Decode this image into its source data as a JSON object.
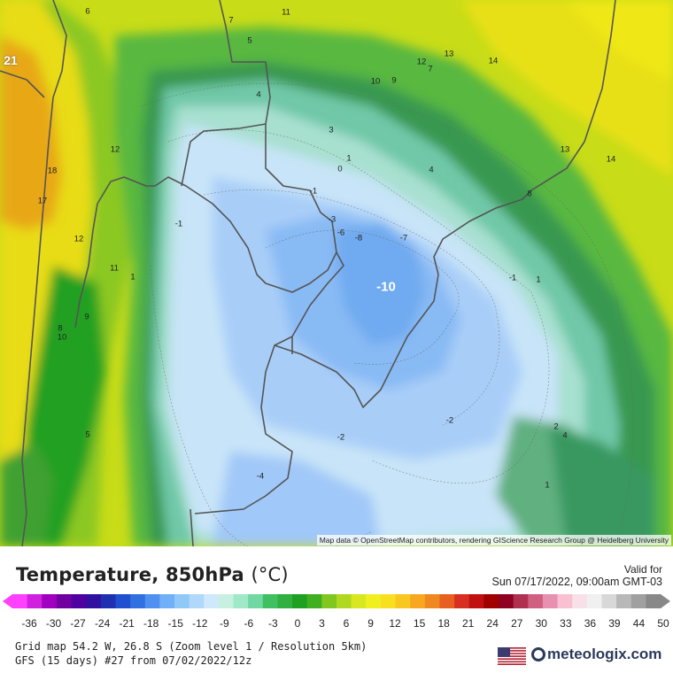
{
  "map": {
    "attribution": "Map data © OpenStreetMap contributors, rendering GIScience Research Group @ Heidelberg University",
    "contour_labels": [
      {
        "text": "6"
      },
      {
        "text": "7"
      },
      {
        "text": "11"
      },
      {
        "text": "5"
      },
      {
        "text": "21"
      },
      {
        "text": "12"
      },
      {
        "text": "7"
      },
      {
        "text": "13"
      },
      {
        "text": "14"
      },
      {
        "text": "10"
      },
      {
        "text": "9"
      },
      {
        "text": "4"
      },
      {
        "text": "3"
      },
      {
        "text": "1"
      },
      {
        "text": "0"
      },
      {
        "text": "4"
      },
      {
        "text": "13"
      },
      {
        "text": "14"
      },
      {
        "text": "12"
      },
      {
        "text": "18"
      },
      {
        "text": "17"
      },
      {
        "text": "-1"
      },
      {
        "text": "-1"
      },
      {
        "text": "-3"
      },
      {
        "text": "-6"
      },
      {
        "text": "-8"
      },
      {
        "text": "-7"
      },
      {
        "text": "8"
      },
      {
        "text": "12"
      },
      {
        "text": "11"
      },
      {
        "text": "1"
      },
      {
        "text": "-1"
      },
      {
        "text": "1"
      },
      {
        "text": "-10"
      },
      {
        "text": "9"
      },
      {
        "text": "8"
      },
      {
        "text": "10"
      },
      {
        "text": "-2"
      },
      {
        "text": "-2"
      },
      {
        "text": "5"
      },
      {
        "text": "2"
      },
      {
        "text": "4"
      },
      {
        "text": "-4"
      },
      {
        "text": "1"
      }
    ]
  },
  "legend": {
    "title_main": "Temperature, 850hPa",
    "title_unit": "(°C)",
    "valid_label": "Valid for",
    "valid_date": "Sun 07/17/2022, 09:00am GMT-03",
    "ticks": [
      "-36",
      "-30",
      "-27",
      "-24",
      "-21",
      "-18",
      "-15",
      "-12",
      "-9",
      "-6",
      "-3",
      "0",
      "3",
      "6",
      "9",
      "12",
      "15",
      "18",
      "21",
      "24",
      "27",
      "30",
      "33",
      "36",
      "39",
      "44",
      "50"
    ],
    "colors": [
      "#ff40ff",
      "#d020e0",
      "#a000c0",
      "#7000a0",
      "#5000a0",
      "#3010a0",
      "#2030b0",
      "#2050d0",
      "#3070e0",
      "#5090f0",
      "#70b0f8",
      "#90c8f8",
      "#b0d8fa",
      "#d0e8fc",
      "#c8f0e0",
      "#a0e8c8",
      "#70d8a0",
      "#40c060",
      "#30b040",
      "#20a020",
      "#40b020",
      "#80c820",
      "#b0d820",
      "#d8e820",
      "#f0f020",
      "#f8e020",
      "#f8c820",
      "#f8a820",
      "#f08820",
      "#e86020",
      "#d83020",
      "#c01010",
      "#a00000",
      "#900020",
      "#b03050",
      "#d06080",
      "#e890b0",
      "#f8c0d0",
      "#f8e0e8",
      "#f0f0f0",
      "#d8d8d8",
      "#b8b8b8",
      "#a0a0a0",
      "#888888"
    ],
    "grid_info": "Grid map 54.2 W, 26.8 S (Zoom level 1 / Resolution 5km)",
    "model_info": "GFS (15 days) #27 from  07/02/2022/12z",
    "brand": "meteologix.com"
  }
}
